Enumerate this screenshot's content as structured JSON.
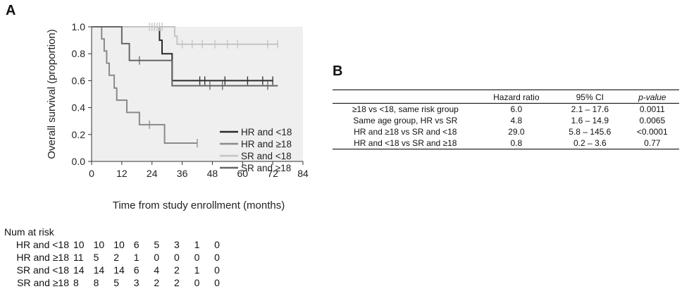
{
  "panels": {
    "a_letter": "A",
    "b_letter": "B"
  },
  "chart_data": {
    "type": "line",
    "title": "",
    "xlabel": "Time from study enrollment (months)",
    "ylabel": "Overall survival (proportion)",
    "xlim": [
      0,
      84
    ],
    "ylim": [
      0,
      1.0
    ],
    "x_ticks": [
      "0",
      "12",
      "24",
      "36",
      "48",
      "60",
      "72",
      "84"
    ],
    "y_ticks": [
      "0.0",
      "0.2",
      "0.4",
      "0.6",
      "0.8",
      "1.0"
    ],
    "legend_position": "bottom-right",
    "series": [
      {
        "name": "HR and <18",
        "color": "#2b2b2b",
        "steps": [
          [
            0,
            1.0
          ],
          [
            27,
            1.0
          ],
          [
            27,
            0.9
          ],
          [
            28,
            0.9
          ],
          [
            28,
            0.8
          ],
          [
            32,
            0.8
          ],
          [
            32,
            0.6
          ],
          [
            72,
            0.6
          ]
        ],
        "censored": [
          [
            43,
            0.6
          ],
          [
            45,
            0.6
          ],
          [
            53,
            0.6
          ],
          [
            62,
            0.6
          ],
          [
            68,
            0.6
          ],
          [
            72,
            0.6
          ]
        ]
      },
      {
        "name": "HR and ≥18",
        "color": "#8a8a8a",
        "steps": [
          [
            0,
            1.0
          ],
          [
            4,
            1.0
          ],
          [
            4,
            0.91
          ],
          [
            5,
            0.91
          ],
          [
            5,
            0.82
          ],
          [
            6,
            0.82
          ],
          [
            6,
            0.73
          ],
          [
            7,
            0.73
          ],
          [
            7,
            0.64
          ],
          [
            9,
            0.64
          ],
          [
            9,
            0.545
          ],
          [
            10,
            0.545
          ],
          [
            10,
            0.455
          ],
          [
            14,
            0.455
          ],
          [
            14,
            0.364
          ],
          [
            19,
            0.364
          ],
          [
            19,
            0.273
          ],
          [
            29,
            0.273
          ],
          [
            29,
            0.136
          ],
          [
            42,
            0.136
          ]
        ],
        "censored": [
          [
            23,
            0.273
          ],
          [
            42,
            0.136
          ]
        ]
      },
      {
        "name": "SR and <18",
        "color": "#c4c4c4",
        "steps": [
          [
            0,
            1.0
          ],
          [
            33,
            1.0
          ],
          [
            33,
            0.93
          ],
          [
            34,
            0.93
          ],
          [
            34,
            0.87
          ],
          [
            74,
            0.87
          ]
        ],
        "censored": [
          [
            23,
            1.0
          ],
          [
            24,
            1.0
          ],
          [
            25,
            1.0
          ],
          [
            26,
            1.0
          ],
          [
            27,
            1.0
          ],
          [
            28,
            1.0
          ],
          [
            36,
            0.87
          ],
          [
            40,
            0.87
          ],
          [
            44,
            0.87
          ],
          [
            49,
            0.87
          ],
          [
            54,
            0.87
          ],
          [
            58,
            0.87
          ],
          [
            70,
            0.87
          ],
          [
            74,
            0.87
          ]
        ]
      },
      {
        "name": "SR and ≥18",
        "color": "#666666",
        "steps": [
          [
            0,
            1.0
          ],
          [
            12,
            1.0
          ],
          [
            12,
            0.875
          ],
          [
            15,
            0.875
          ],
          [
            15,
            0.75
          ],
          [
            32,
            0.75
          ],
          [
            32,
            0.5625
          ],
          [
            74,
            0.5625
          ]
        ],
        "censored": [
          [
            19,
            0.75
          ],
          [
            47,
            0.5625
          ],
          [
            52,
            0.5625
          ],
          [
            70,
            0.5625
          ]
        ]
      }
    ]
  },
  "risk_table": {
    "title": "Num at risk",
    "rows": [
      {
        "label": "HR and <18",
        "values": [
          "10",
          "10",
          "10",
          "6",
          "5",
          "3",
          "1",
          "0"
        ]
      },
      {
        "label": "HR and ≥18",
        "values": [
          "11",
          "5",
          "2",
          "1",
          "0",
          "0",
          "0",
          "0"
        ]
      },
      {
        "label": "SR and <18",
        "values": [
          "14",
          "14",
          "14",
          "6",
          "4",
          "2",
          "1",
          "0"
        ]
      },
      {
        "label": "SR and ≥18",
        "values": [
          "8",
          "8",
          "5",
          "3",
          "2",
          "2",
          "0",
          "0"
        ]
      }
    ]
  },
  "hazard_table": {
    "headers": [
      "",
      "Hazard ratio",
      "95% CI",
      "p-value"
    ],
    "rows": [
      [
        "≥18 vs <18, same risk group",
        "6.0",
        "2.1 – 17.6",
        "0.0011"
      ],
      [
        "Same age group, HR vs SR",
        "4.8",
        "1.6 – 14.9",
        "0.0065"
      ],
      [
        "HR and ≥18 vs SR and <18",
        "29.0",
        "5.8 – 145.6",
        "<0.0001"
      ],
      [
        "HR and <18 vs SR and ≥18",
        "0.8",
        "0.2 – 3.6",
        "0.77"
      ]
    ]
  }
}
